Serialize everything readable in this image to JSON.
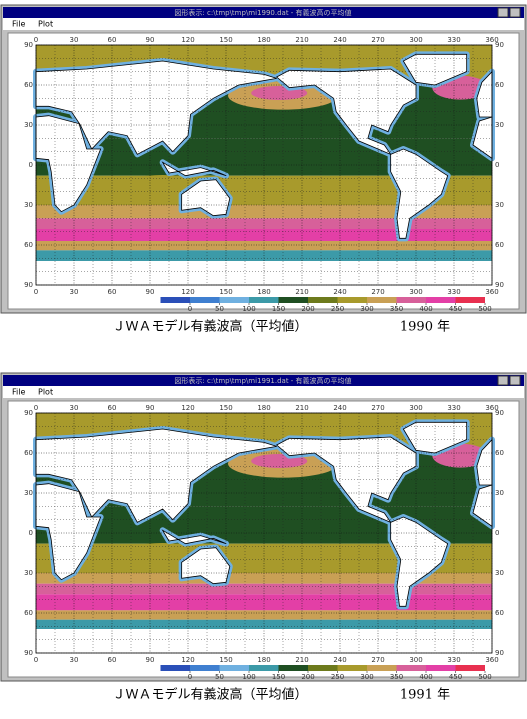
{
  "windows": [
    {
      "title": "図形表示: c:\\tmp\\tmp\\mi1990.dat - 有義波高の平均値",
      "menu": [
        "File",
        "Plot"
      ],
      "xticks": [
        0,
        30,
        60,
        90,
        120,
        150,
        180,
        210,
        240,
        270,
        300,
        330,
        360
      ],
      "yticks": [
        90,
        60,
        30,
        0,
        {
          "value": -30,
          "label": "30"
        },
        {
          "value": -60,
          "label": "60"
        },
        {
          "value": -90,
          "label": "90"
        }
      ],
      "colorbar": {
        "ticks": [
          0,
          50,
          100,
          150,
          200,
          250,
          300,
          350,
          400,
          450,
          500
        ],
        "colors": [
          "#2a4fb8",
          "#3f7fd0",
          "#6fb0e0",
          "#3c9aa8",
          "#1f4f22",
          "#6d7a1c",
          "#a89a2c",
          "#c9a055",
          "#d7609a",
          "#e33fa6",
          "#e83050"
        ]
      },
      "caption": "ＪＷＡモデル有義波高（平均値）",
      "year": "1990 年"
    },
    {
      "title": "図形表示: c:\\tmp\\tmp\\mi1991.dat - 有義波高の平均値",
      "menu": [
        "File",
        "Plot"
      ],
      "xticks": [
        0,
        30,
        60,
        90,
        120,
        150,
        180,
        210,
        240,
        270,
        300,
        330,
        360
      ],
      "yticks": [
        90,
        60,
        30,
        0,
        {
          "value": -30,
          "label": "30"
        },
        {
          "value": -60,
          "label": "60"
        },
        {
          "value": -90,
          "label": "90"
        }
      ],
      "colorbar": {
        "ticks": [
          0,
          50,
          100,
          150,
          200,
          250,
          300,
          350,
          400,
          450,
          500
        ],
        "colors": [
          "#2a4fb8",
          "#3f7fd0",
          "#6fb0e0",
          "#3c9aa8",
          "#1f4f22",
          "#6d7a1c",
          "#a89a2c",
          "#c9a055",
          "#d7609a",
          "#e33fa6",
          "#e83050"
        ]
      },
      "caption": "ＪＷＡモデル有義波高（平均値）",
      "year": "1991 年"
    }
  ]
}
